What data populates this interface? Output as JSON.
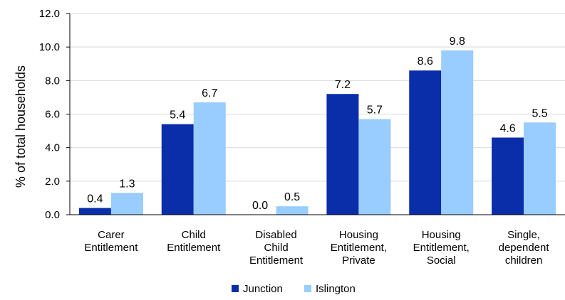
{
  "chart_data": {
    "type": "bar",
    "title": "",
    "xlabel": "",
    "ylabel": "% of total households",
    "ylim": [
      0,
      12
    ],
    "yticks": [
      "0.0",
      "2.0",
      "4.0",
      "6.0",
      "8.0",
      "10.0",
      "12.0"
    ],
    "grid": true,
    "legend_position": "bottom",
    "categories": [
      [
        "Carer",
        "Entitlement"
      ],
      [
        "Child",
        "Entitlement"
      ],
      [
        "Disabled",
        "Child",
        "Entitlement"
      ],
      [
        "Housing",
        "Entitlement,",
        "Private"
      ],
      [
        "Housing",
        "Entitlement,",
        "Social"
      ],
      [
        "Single,",
        "dependent",
        "children"
      ]
    ],
    "series": [
      {
        "name": "Junction",
        "color": "#0A2DAA",
        "values": [
          0.4,
          5.4,
          0.0,
          7.2,
          8.6,
          4.6
        ],
        "labels": [
          "0.4",
          "5.4",
          "0.0",
          "7.2",
          "8.6",
          "4.6"
        ]
      },
      {
        "name": "Islington",
        "color": "#99CCFF",
        "values": [
          1.3,
          6.7,
          0.5,
          5.7,
          9.8,
          5.5
        ],
        "labels": [
          "1.3",
          "6.7",
          "0.5",
          "5.7",
          "9.8",
          "5.5"
        ]
      }
    ]
  }
}
